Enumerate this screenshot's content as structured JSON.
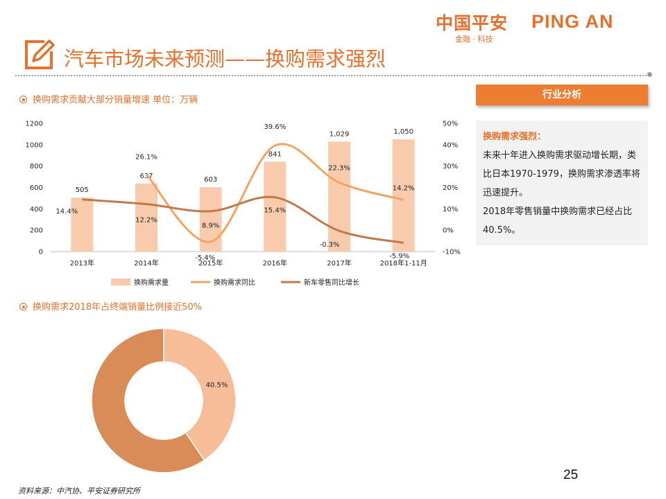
{
  "logo": {
    "cn": "中国平安",
    "en": "PING AN",
    "sub": "金融 · 科技"
  },
  "title": "汽车市场未来预测——换购需求强烈",
  "section1": {
    "heading": "换购需求贡献大部分销量增速 单位：万辆"
  },
  "section2": {
    "heading": "换购需求2018年占终端销量比例接近50%"
  },
  "panel": {
    "header": "行业分析",
    "subheading": "换购需求强烈：",
    "para1": "未来十年进入换购需求驱动增长期，类比日本1970-1979，换购需求渗透率将迅速提升。",
    "para2": "2018年零售销量中换购需求已经占比40.5%。"
  },
  "colors": {
    "accent": "#e8702a",
    "bar": "#f8cbad",
    "line_yoy": "#f4a460",
    "line_new": "#c0784c",
    "donut_big": "#d98c57",
    "donut_small": "#f7bc98"
  },
  "chart_data": [
    {
      "type": "bar",
      "categories": [
        "2013年",
        "2014年",
        "2015年",
        "2016年",
        "2017年",
        "2018年1-11月"
      ],
      "left_axis": {
        "ticks": [
          "0",
          "200",
          "400",
          "600",
          "800",
          "1000",
          "1200"
        ],
        "ylim": [
          0,
          1200
        ]
      },
      "right_axis": {
        "ticks": [
          "-10%",
          "0%",
          "10%",
          "20%",
          "30%",
          "40%",
          "50%"
        ],
        "ylim": [
          -10,
          50
        ]
      },
      "series": [
        {
          "name": "换购需求量",
          "type": "bar",
          "axis": "left",
          "values": [
            505,
            637,
            603,
            841,
            1029,
            1050
          ],
          "labels": [
            "505",
            "637",
            "603",
            "841",
            "1,029",
            "1,050"
          ]
        },
        {
          "name": "换购需求同比",
          "type": "line",
          "axis": "right",
          "values": [
            null,
            26.1,
            -5.4,
            39.6,
            22.3,
            14.2
          ],
          "labels": [
            "",
            "26.1%",
            "-5.4%",
            "39.6%",
            "22.3%",
            "14.2%"
          ]
        },
        {
          "name": "新车零售同比增长",
          "type": "line",
          "axis": "right",
          "values": [
            14.4,
            12.2,
            8.9,
            15.4,
            -0.3,
            -5.9
          ],
          "labels": [
            "14.4%",
            "12.2%",
            "8.9%",
            "15.4%",
            "-0.3%",
            "-5.9%"
          ]
        }
      ],
      "legend_position": "bottom",
      "grid": false
    },
    {
      "type": "pie",
      "style": "donut",
      "values": [
        40.5,
        59.5
      ],
      "labels": [
        "40.5%",
        ""
      ]
    }
  ],
  "footer": {
    "page": "25",
    "source": "资料来源：中汽协、平安证券研究所"
  }
}
